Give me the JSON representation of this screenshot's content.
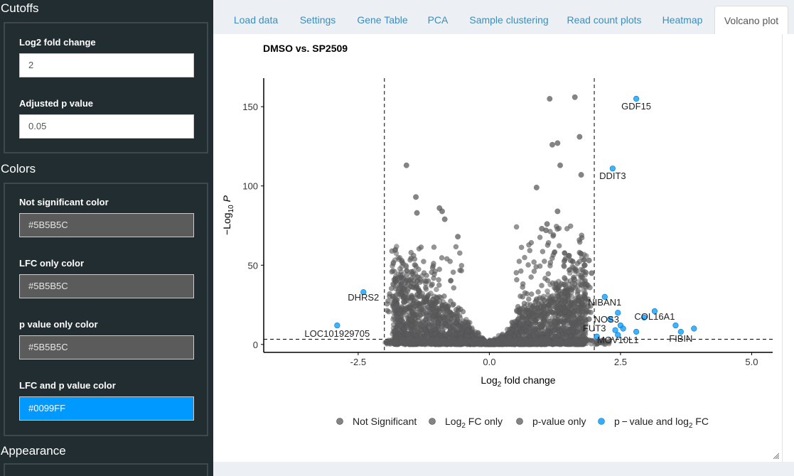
{
  "sidebar": {
    "cutoffs": {
      "title": "Cutoffs",
      "lfc_label": "Log2 fold change",
      "lfc_value": "2",
      "padj_label": "Adjusted p value",
      "padj_value": "0.05"
    },
    "colors": {
      "title": "Colors",
      "ns_label": "Not significant color",
      "ns_value": "#5B5B5C",
      "lfc_label": "LFC only color",
      "lfc_value": "#5B5B5C",
      "p_label": "p value only color",
      "p_value": "#5B5B5C",
      "both_label": "LFC and p value color",
      "both_value": "#0099FF"
    },
    "appearance": {
      "title": "Appearance"
    }
  },
  "tabs": [
    {
      "label": "Load data",
      "active": false
    },
    {
      "label": "Settings",
      "active": false
    },
    {
      "label": "Gene Table",
      "active": false
    },
    {
      "label": "PCA",
      "active": false
    },
    {
      "label": "Sample clustering",
      "active": false
    },
    {
      "label": "Read count plots",
      "active": false
    },
    {
      "label": "Heatmap",
      "active": false
    },
    {
      "label": "Volcano plot",
      "active": true
    }
  ],
  "colors": {
    "not_significant": "#5B5B5C",
    "significant": "#0099FF",
    "link": "#3c8dbc",
    "sidebar_bg": "#222d32"
  },
  "chart_data": {
    "type": "scatter",
    "title": "DMSO vs. SP2509",
    "xlabel": "Log2 fold change",
    "ylabel": "-Log10 P",
    "xlim": [
      -4.3,
      5.4
    ],
    "ylim": [
      -5,
      168
    ],
    "x_ticks": [
      "-2.5",
      "0.0",
      "2.5",
      "5.0"
    ],
    "y_ticks": [
      "0",
      "50",
      "100",
      "150"
    ],
    "x_tick_values": [
      -2.5,
      0,
      2.5,
      5
    ],
    "y_tick_values": [
      0,
      50,
      100,
      150
    ],
    "cutoffs": {
      "lfc": 2,
      "p_line": 3.3
    },
    "legend": {
      "position": "bottom",
      "entries": [
        {
          "label": "Not Significant",
          "color": "#5B5B5C"
        },
        {
          "label": "Log2 FC only",
          "color": "#5B5B5C"
        },
        {
          "label": "p-value only",
          "color": "#5B5B5C"
        },
        {
          "label": "p-value and log2 FC",
          "color": "#0099FF"
        }
      ]
    },
    "labeled_genes": [
      {
        "gene": "GDF15",
        "x": 2.8,
        "y": 155
      },
      {
        "gene": "DDIT3",
        "x": 2.35,
        "y": 111
      },
      {
        "gene": "DHRS2",
        "x": -2.4,
        "y": 33
      },
      {
        "gene": "NIBAN1",
        "x": 2.2,
        "y": 30
      },
      {
        "gene": "NOS3",
        "x": 2.45,
        "y": 20
      },
      {
        "gene": "COL16A1",
        "x": 3.15,
        "y": 21
      },
      {
        "gene": "FUT3",
        "x": 2.3,
        "y": 11
      },
      {
        "gene": "MOV10L1",
        "x": 2.45,
        "y": 7
      },
      {
        "gene": "FIBIN",
        "x": 3.65,
        "y": 8
      },
      {
        "gene": "LOC101929705",
        "x": -2.9,
        "y": 12
      }
    ],
    "significant_points": [
      [
        2.8,
        155
      ],
      [
        2.35,
        111
      ],
      [
        -2.4,
        33
      ],
      [
        2.2,
        30
      ],
      [
        2.45,
        20
      ],
      [
        3.15,
        21
      ],
      [
        2.95,
        17
      ],
      [
        2.3,
        16
      ],
      [
        2.5,
        12
      ],
      [
        2.4,
        9
      ],
      [
        2.55,
        10
      ],
      [
        2.45,
        6
      ],
      [
        2.8,
        8
      ],
      [
        3.55,
        12
      ],
      [
        3.65,
        8
      ],
      [
        3.9,
        10
      ],
      [
        -2.9,
        12
      ],
      [
        2.05,
        5
      ]
    ],
    "gray_outliers": [
      [
        1.15,
        155
      ],
      [
        1.63,
        156
      ],
      [
        1.72,
        131
      ],
      [
        1.2,
        126
      ],
      [
        1.3,
        127
      ],
      [
        1.35,
        113
      ],
      [
        1.75,
        107
      ],
      [
        0.9,
        99
      ],
      [
        -1.58,
        113
      ],
      [
        -1.4,
        93
      ],
      [
        -1.38,
        83
      ],
      [
        -0.95,
        86
      ],
      [
        -0.9,
        84
      ],
      [
        -0.85,
        79
      ],
      [
        -0.6,
        68
      ],
      [
        1.3,
        84
      ],
      [
        1.1,
        76
      ],
      [
        1.08,
        72
      ],
      [
        1.0,
        73
      ],
      [
        1.52,
        56
      ],
      [
        1.55,
        53
      ],
      [
        1.82,
        50
      ],
      [
        1.9,
        53
      ],
      [
        1.95,
        45
      ],
      [
        1.85,
        38
      ],
      [
        1.62,
        41
      ],
      [
        -1.6,
        22
      ],
      [
        -1.5,
        16
      ],
      [
        1.88,
        24
      ],
      [
        1.78,
        12
      ],
      [
        0.55,
        16
      ],
      [
        0.85,
        18
      ],
      [
        1.25,
        14
      ],
      [
        1.72,
        30
      ],
      [
        1.45,
        33
      ],
      [
        1.9,
        16
      ]
    ]
  }
}
